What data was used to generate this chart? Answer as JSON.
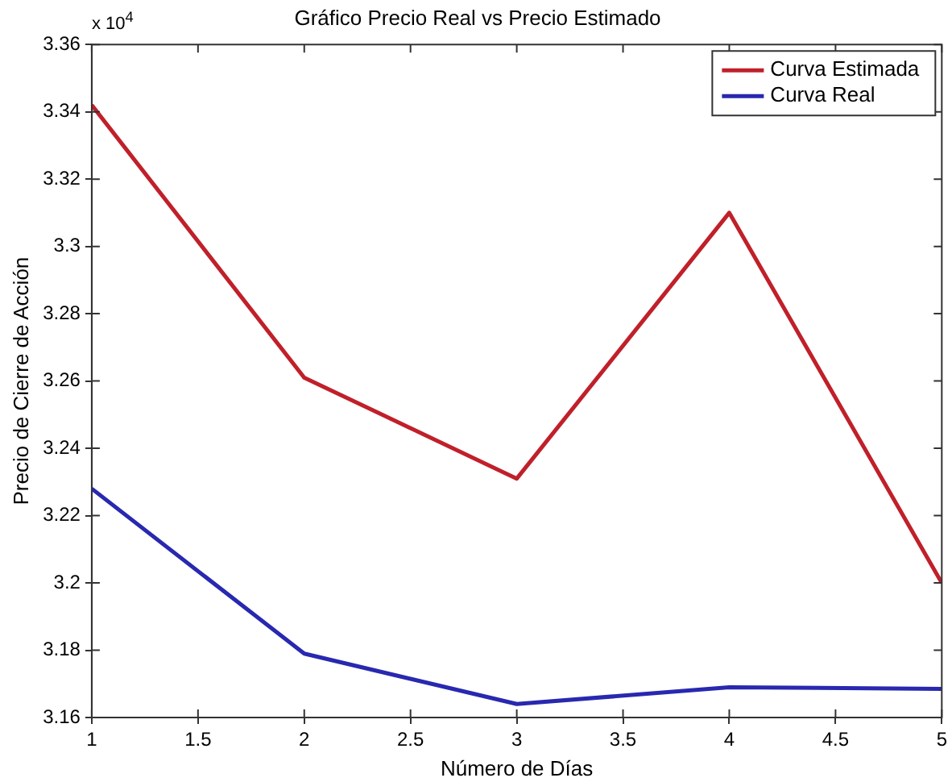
{
  "chart_data": {
    "type": "line",
    "title": "Gráfico Precio Real vs Precio Estimado",
    "xlabel": "Número de Días",
    "ylabel": "Precio de Cierre de Acción",
    "annotations": [
      "x 10$^{4}$"
    ],
    "x": [
      1,
      2,
      3,
      4,
      5
    ],
    "series": [
      {
        "name": "Curva Estimada",
        "color": "#c0202a",
        "values": [
          3.342,
          3.261,
          3.231,
          3.31,
          3.2
        ]
      },
      {
        "name": "Curva Real",
        "color": "#2828b0",
        "values": [
          3.228,
          3.179,
          3.164,
          3.169,
          3.1685
        ]
      }
    ],
    "xlim": [
      1,
      5
    ],
    "xticks": [
      1,
      1.5,
      2,
      2.5,
      3,
      3.5,
      4,
      4.5,
      5
    ],
    "ylim": [
      3.16,
      3.36
    ],
    "yticks": [
      3.16,
      3.18,
      3.2,
      3.22,
      3.24,
      3.26,
      3.28,
      3.3,
      3.32,
      3.34,
      3.36
    ],
    "grid": false,
    "legend": "top right",
    "marker": "none",
    "line_style": "solid"
  }
}
